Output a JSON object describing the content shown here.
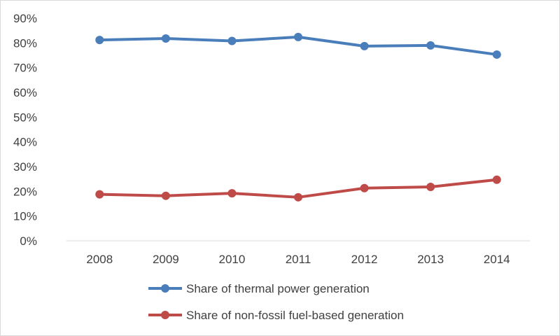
{
  "chart_data": {
    "type": "line",
    "title": "",
    "xlabel": "",
    "ylabel": "",
    "categories": [
      "2008",
      "2009",
      "2010",
      "2011",
      "2012",
      "2013",
      "2014"
    ],
    "ylim": [
      0,
      90
    ],
    "yticks": [
      "0%",
      "10%",
      "20%",
      "30%",
      "40%",
      "50%",
      "60%",
      "70%",
      "80%",
      "90%"
    ],
    "grid": false,
    "legend_position": "bottom",
    "series": [
      {
        "name": "Share of thermal power generation",
        "color": "#4a7ebb",
        "values": [
          81.2,
          81.8,
          80.8,
          82.4,
          78.7,
          79.0,
          75.3
        ]
      },
      {
        "name": "Share of non-fossil fuel-based generation",
        "color": "#be4b48",
        "values": [
          18.8,
          18.2,
          19.2,
          17.6,
          21.3,
          21.8,
          24.7
        ]
      }
    ]
  }
}
